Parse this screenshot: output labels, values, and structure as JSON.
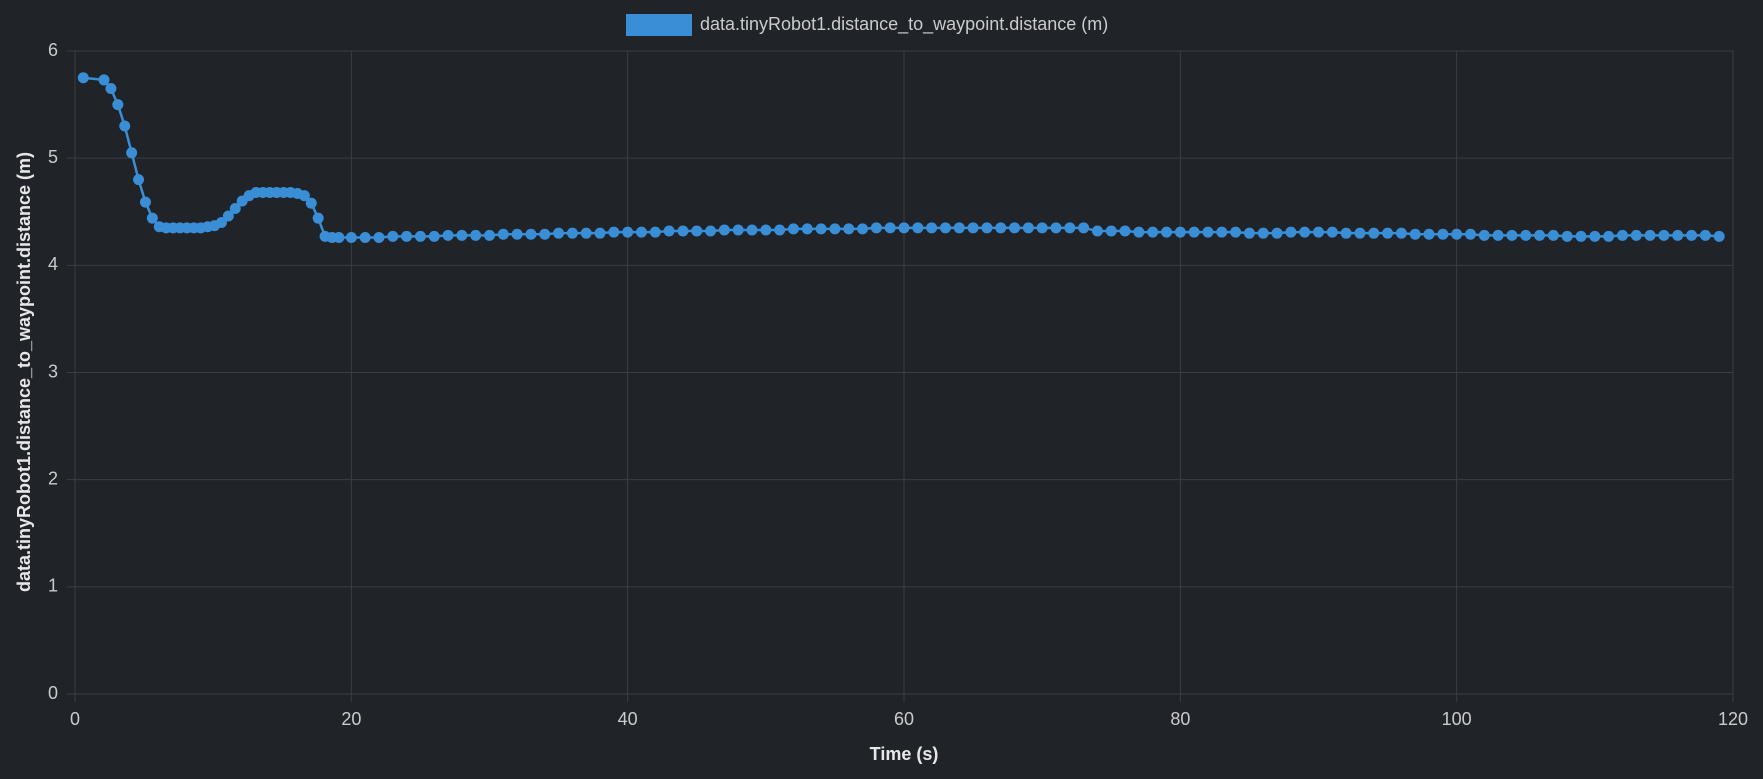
{
  "chart_data": {
    "type": "line",
    "x_label": "Time (s)",
    "y_label": "data.tinyRobot1.distance_to_waypoint.distance (m)",
    "xlim": [
      0,
      120
    ],
    "xticks": [
      0,
      20,
      40,
      60,
      80,
      100,
      120
    ],
    "ylim": [
      0,
      6
    ],
    "yticks": [
      0,
      1,
      2,
      3,
      4,
      5,
      6
    ],
    "grid": true,
    "legend": "top",
    "x": [
      0.6,
      2.1,
      2.6,
      3.1,
      3.6,
      4.1,
      4.6,
      5.1,
      5.6,
      6.1,
      6.6,
      7.1,
      7.6,
      8.1,
      8.6,
      9.1,
      9.6,
      10.1,
      10.6,
      11.1,
      11.6,
      12.1,
      12.6,
      13.1,
      13.6,
      14.1,
      14.6,
      15.1,
      15.6,
      16.1,
      16.6,
      17.1,
      17.6,
      18.1,
      18.6,
      19.1,
      20,
      21,
      22,
      23,
      24,
      25,
      26,
      27,
      28,
      29,
      30,
      31,
      32,
      33,
      34,
      35,
      36,
      37,
      38,
      39,
      40,
      41,
      42,
      43,
      44,
      45,
      46,
      47,
      48,
      49,
      50,
      51,
      52,
      53,
      54,
      55,
      56,
      57,
      58,
      59,
      60,
      61,
      62,
      63,
      64,
      65,
      66,
      67,
      68,
      69,
      70,
      71,
      72,
      73,
      74,
      75,
      76,
      77,
      78,
      79,
      80,
      81,
      82,
      83,
      84,
      85,
      86,
      87,
      88,
      89,
      90,
      91,
      92,
      93,
      94,
      95,
      96,
      97,
      98,
      99,
      100,
      101,
      102,
      103,
      104,
      105,
      106,
      107,
      108,
      109,
      110,
      111,
      112,
      113,
      114,
      115,
      116,
      117,
      118,
      119
    ],
    "series": [
      {
        "name": "data.tinyRobot1.distance_to_waypoint.distance (m)",
        "color": "#3a8ed6",
        "values": [
          5.75,
          5.73,
          5.65,
          5.5,
          5.3,
          5.05,
          4.8,
          4.59,
          4.44,
          4.36,
          4.35,
          4.35,
          4.35,
          4.35,
          4.35,
          4.35,
          4.36,
          4.37,
          4.4,
          4.46,
          4.53,
          4.6,
          4.65,
          4.68,
          4.68,
          4.68,
          4.68,
          4.68,
          4.68,
          4.67,
          4.65,
          4.58,
          4.44,
          4.27,
          4.26,
          4.26,
          4.26,
          4.26,
          4.26,
          4.27,
          4.27,
          4.27,
          4.27,
          4.28,
          4.28,
          4.28,
          4.28,
          4.29,
          4.29,
          4.29,
          4.29,
          4.3,
          4.3,
          4.3,
          4.3,
          4.31,
          4.31,
          4.31,
          4.31,
          4.32,
          4.32,
          4.32,
          4.32,
          4.33,
          4.33,
          4.33,
          4.33,
          4.33,
          4.34,
          4.34,
          4.34,
          4.34,
          4.34,
          4.34,
          4.35,
          4.35,
          4.35,
          4.35,
          4.35,
          4.35,
          4.35,
          4.35,
          4.35,
          4.35,
          4.35,
          4.35,
          4.35,
          4.35,
          4.35,
          4.35,
          4.32,
          4.32,
          4.32,
          4.31,
          4.31,
          4.31,
          4.31,
          4.31,
          4.31,
          4.31,
          4.31,
          4.3,
          4.3,
          4.3,
          4.31,
          4.31,
          4.31,
          4.31,
          4.3,
          4.3,
          4.3,
          4.3,
          4.3,
          4.29,
          4.29,
          4.29,
          4.29,
          4.29,
          4.28,
          4.28,
          4.28,
          4.28,
          4.28,
          4.28,
          4.27,
          4.27,
          4.27,
          4.27,
          4.28,
          4.28,
          4.28,
          4.28,
          4.28,
          4.28,
          4.28,
          4.27
        ]
      }
    ]
  }
}
